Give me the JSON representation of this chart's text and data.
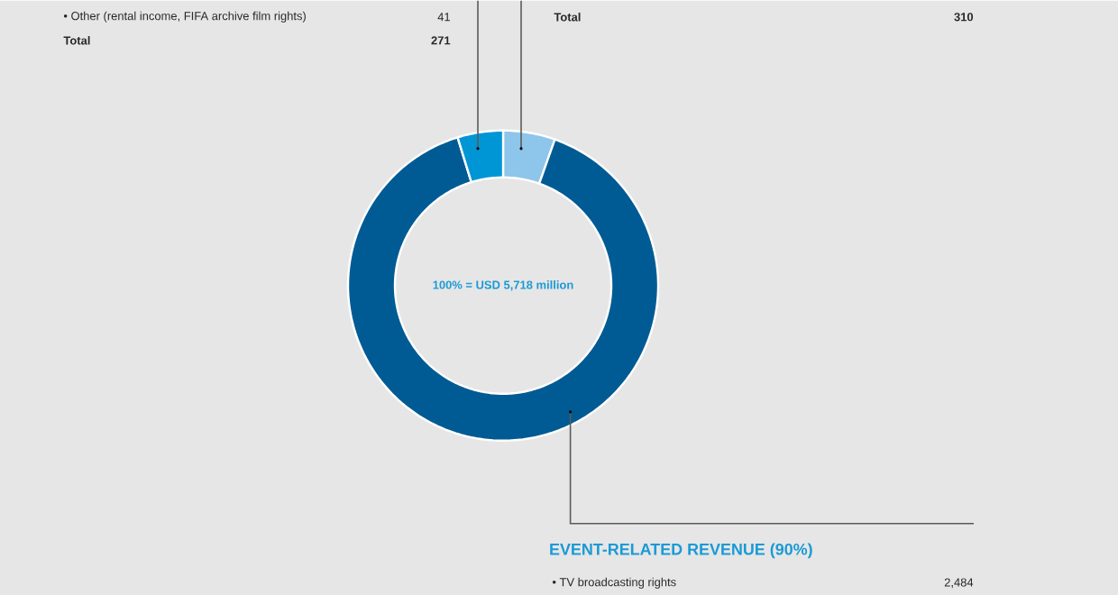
{
  "chart_data": {
    "type": "donut",
    "categories": [
      null,
      "EVENT-RELATED REVENUE (90%)",
      null
    ],
    "values": [
      5.42,
      89.84,
      4.74
    ],
    "colors": [
      "#8ec5ea",
      "#005b94",
      "#0096d6"
    ],
    "annotations": [
      "100% = USD 5,718 million",
      "• Other (rental income, FIFA archive film rights)",
      "41",
      "**Total**",
      "**271**",
      "**Total**",
      "**310**",
      "• TV broadcasting rights",
      "2,484"
    ]
  }
}
